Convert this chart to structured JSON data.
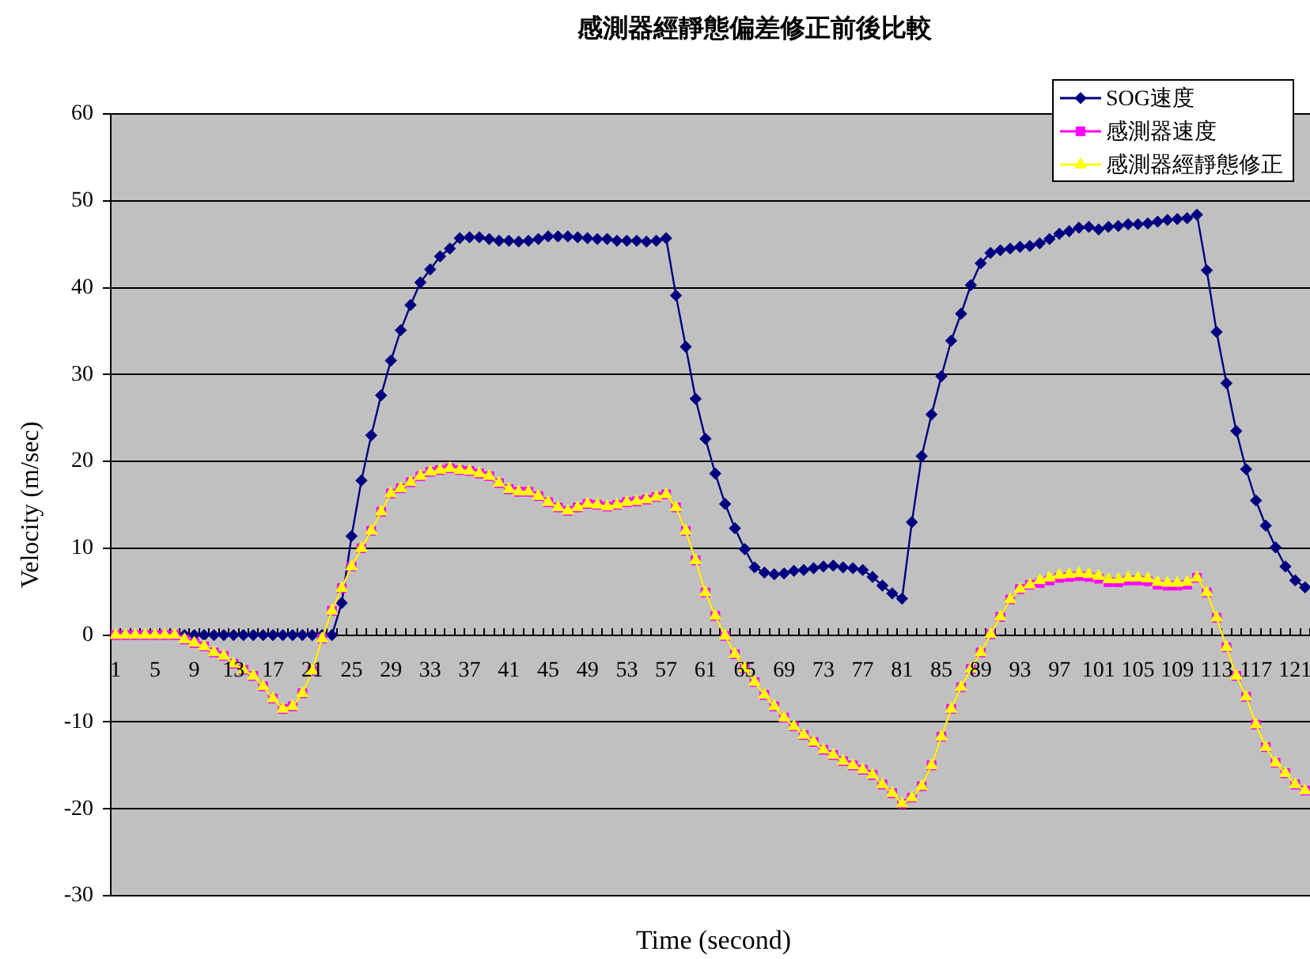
{
  "chart_data": {
    "type": "line",
    "title": "感測器經靜態偏差修正前後比較",
    "xlabel": "Time (second)",
    "ylabel": "Velocity (m/sec)",
    "categories": [
      "1",
      null,
      null,
      null,
      "5",
      null,
      null,
      null,
      "9",
      null,
      null,
      null,
      "13",
      null,
      null,
      null,
      "17",
      null,
      null,
      null,
      "21",
      null,
      null,
      null,
      "25",
      null,
      null,
      null,
      "29",
      null,
      null,
      null,
      "33",
      null,
      null,
      null,
      "37",
      null,
      null,
      null,
      "41",
      null,
      null,
      null,
      "45",
      null,
      null,
      null,
      "49",
      null,
      null,
      null,
      "53",
      null,
      null,
      null,
      "57",
      null,
      null,
      null,
      "61",
      null,
      null,
      null,
      "65",
      null,
      null,
      null,
      "69",
      null,
      null,
      null,
      "73",
      null,
      null,
      null,
      "77",
      null,
      null,
      null,
      "81",
      null,
      null,
      null,
      "85",
      null,
      null,
      null,
      "89",
      null,
      null,
      null,
      "93",
      null,
      null,
      null,
      "97",
      null,
      null,
      null,
      "101",
      null,
      null,
      null,
      "105",
      null,
      null,
      null,
      "109",
      null,
      null,
      null,
      "113",
      null,
      null,
      null,
      "117",
      null,
      null,
      null,
      "121",
      null
    ],
    "series": [
      {
        "name": "SOG速度",
        "color": "#000080",
        "marker": "diamond",
        "values": [
          null,
          null,
          null,
          null,
          null,
          null,
          null,
          0,
          0,
          0,
          0,
          0,
          0,
          0,
          0,
          0,
          0,
          0,
          0,
          0,
          0,
          0,
          0,
          3.7,
          11.4,
          17.8,
          23.0,
          27.6,
          31.6,
          35.1,
          38.0,
          40.6,
          42.1,
          43.6,
          44.5,
          45.7,
          45.8,
          45.8,
          45.6,
          45.4,
          45.4,
          45.3,
          45.4,
          45.6,
          45.9,
          45.9,
          45.9,
          45.8,
          45.7,
          45.6,
          45.6,
          45.4,
          45.4,
          45.4,
          45.3,
          45.4,
          45.7,
          39.1,
          33.2,
          27.2,
          22.6,
          18.6,
          15.1,
          12.3,
          9.9,
          7.8,
          7.2,
          7.0,
          7.1,
          7.4,
          7.5,
          7.7,
          7.9,
          8.0,
          7.8,
          7.7,
          7.5,
          6.7,
          5.7,
          4.8,
          4.2,
          13.0,
          20.6,
          25.4,
          29.8,
          33.9,
          37.0,
          40.3,
          42.8,
          44.0,
          44.3,
          44.5,
          44.7,
          44.8,
          45.1,
          45.6,
          46.2,
          46.5,
          46.9,
          47.0,
          46.7,
          47.0,
          47.1,
          47.3,
          47.3,
          47.4,
          47.6,
          47.8,
          47.9,
          48.0,
          48.4,
          42.0,
          34.9,
          29.0,
          23.5,
          19.1,
          15.5,
          12.6,
          10.1,
          7.9,
          6.3,
          5.5
        ]
      },
      {
        "name": "感測器速度",
        "color": "#ff00ff",
        "marker": "square",
        "values": [
          0,
          0,
          0,
          0,
          0,
          0,
          0,
          -0.5,
          -0.9,
          -1.3,
          -2.0,
          -2.4,
          -3.3,
          -4.0,
          -4.7,
          -5.9,
          -7.3,
          -8.5,
          -8.2,
          -6.7,
          -4.1,
          -0.4,
          2.8,
          5.4,
          7.9,
          10.0,
          12.0,
          14.2,
          16.3,
          16.9,
          17.6,
          18.3,
          18.8,
          19.0,
          19.2,
          19.0,
          18.9,
          18.6,
          18.3,
          17.5,
          16.8,
          16.5,
          16.5,
          16.0,
          15.3,
          14.7,
          14.3,
          14.7,
          15.1,
          15.0,
          14.8,
          15.0,
          15.3,
          15.4,
          15.6,
          15.9,
          16.2,
          14.7,
          12.0,
          8.6,
          4.9,
          2.2,
          -0.1,
          -2.2,
          -3.8,
          -5.4,
          -6.9,
          -8.2,
          -9.5,
          -10.5,
          -11.5,
          -12.3,
          -13.2,
          -13.8,
          -14.5,
          -15.0,
          -15.5,
          -16.1,
          -17.2,
          -18.2,
          -19.4,
          -18.7,
          -17.4,
          -15.0,
          -11.7,
          -8.5,
          -6.0,
          -3.9,
          -2.0,
          0.1,
          2.1,
          4.1,
          5.3,
          5.8,
          6.0,
          6.3,
          6.6,
          6.7,
          6.8,
          6.7,
          6.5,
          6.1,
          6.1,
          6.3,
          6.3,
          6.2,
          5.8,
          5.7,
          5.7,
          5.8,
          6.6,
          4.9,
          2.0,
          -1.4,
          -4.7,
          -7.1,
          -10.3,
          -12.9,
          -14.7,
          -15.9,
          -17.2,
          -17.9
        ]
      },
      {
        "name": "感測器經靜態修正",
        "color": "#ffff00",
        "marker": "triangle",
        "values": [
          0,
          0,
          0,
          0,
          0,
          0,
          0,
          -0.5,
          -0.9,
          -1.3,
          -2.0,
          -2.4,
          -3.3,
          -4.0,
          -4.7,
          -5.9,
          -7.3,
          -8.5,
          -8.2,
          -6.7,
          -4.1,
          -0.4,
          2.8,
          5.4,
          7.9,
          10.0,
          12.0,
          14.2,
          16.3,
          16.9,
          17.6,
          18.3,
          18.8,
          19.0,
          19.2,
          19.0,
          18.9,
          18.6,
          18.3,
          17.5,
          16.8,
          16.5,
          16.5,
          16.0,
          15.3,
          14.7,
          14.3,
          14.7,
          15.1,
          15.0,
          14.8,
          15.0,
          15.3,
          15.4,
          15.6,
          15.9,
          16.2,
          14.7,
          12.0,
          8.6,
          4.9,
          2.2,
          -0.1,
          -2.2,
          -3.8,
          -5.4,
          -6.9,
          -8.2,
          -9.5,
          -10.5,
          -11.5,
          -12.3,
          -13.2,
          -13.8,
          -14.5,
          -15.0,
          -15.5,
          -16.1,
          -17.2,
          -18.2,
          -19.4,
          -18.7,
          -17.4,
          -15.0,
          -11.7,
          -8.5,
          -6.0,
          -3.9,
          -2.0,
          0.1,
          2.1,
          4.1,
          5.3,
          5.8,
          6.3,
          6.6,
          6.9,
          7.0,
          7.1,
          7.0,
          6.8,
          6.4,
          6.4,
          6.6,
          6.6,
          6.5,
          6.1,
          6.0,
          6.0,
          6.1,
          6.6,
          4.9,
          2.0,
          -1.4,
          -4.7,
          -7.1,
          -10.3,
          -12.9,
          -14.7,
          -15.9,
          -17.2,
          -17.9
        ]
      }
    ],
    "ylim": [
      -30,
      60
    ],
    "yticks": [
      -30,
      -20,
      -10,
      0,
      10,
      20,
      30,
      40,
      50,
      60
    ],
    "grid": "y",
    "legend": "top right"
  }
}
